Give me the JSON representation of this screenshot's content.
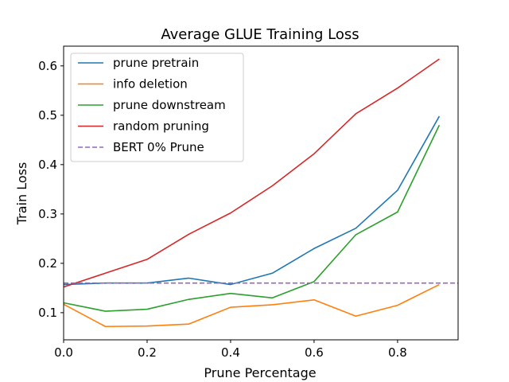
{
  "chart_data": {
    "type": "line",
    "title": "Average GLUE Training Loss",
    "xlabel": "Prune Percentage",
    "ylabel": "Train Loss",
    "xlim": [
      0.0,
      0.945
    ],
    "ylim": [
      0.045,
      0.64
    ],
    "xticks": [
      0.0,
      0.2,
      0.4,
      0.6,
      0.8
    ],
    "xtick_labels": [
      "0.0",
      "0.2",
      "0.4",
      "0.6",
      "0.8"
    ],
    "yticks": [
      0.1,
      0.2,
      0.3,
      0.4,
      0.5,
      0.6
    ],
    "ytick_labels": [
      "0.1",
      "0.2",
      "0.3",
      "0.4",
      "0.5",
      "0.6"
    ],
    "grid": false,
    "legend_position": "top-left",
    "x": [
      0.0,
      0.1,
      0.2,
      0.3,
      0.4,
      0.5,
      0.6,
      0.7,
      0.8,
      0.9
    ],
    "series": [
      {
        "name": "prune pretrain",
        "color": "#1f77b4",
        "style": "solid",
        "values": [
          0.157,
          0.16,
          0.16,
          0.17,
          0.157,
          0.18,
          0.23,
          0.271,
          0.348,
          0.498
        ]
      },
      {
        "name": "info deletion",
        "color": "#ff7f0e",
        "style": "solid",
        "values": [
          0.117,
          0.072,
          0.073,
          0.077,
          0.111,
          0.116,
          0.126,
          0.093,
          0.115,
          0.157
        ]
      },
      {
        "name": "prune downstream",
        "color": "#2ca02c",
        "style": "solid",
        "values": [
          0.12,
          0.103,
          0.107,
          0.127,
          0.139,
          0.13,
          0.163,
          0.258,
          0.304,
          0.48
        ]
      },
      {
        "name": "random pruning",
        "color": "#d62728",
        "style": "solid",
        "values": [
          0.152,
          0.18,
          0.208,
          0.259,
          0.302,
          0.357,
          0.422,
          0.503,
          0.555,
          0.614
        ]
      },
      {
        "name": "BERT 0% Prune",
        "color": "#9467bd",
        "style": "dashed",
        "values": [
          0.16,
          0.16,
          0.16,
          0.16,
          0.16,
          0.16,
          0.16,
          0.16,
          0.16,
          0.16
        ],
        "span_to_axis_end": true
      }
    ]
  }
}
